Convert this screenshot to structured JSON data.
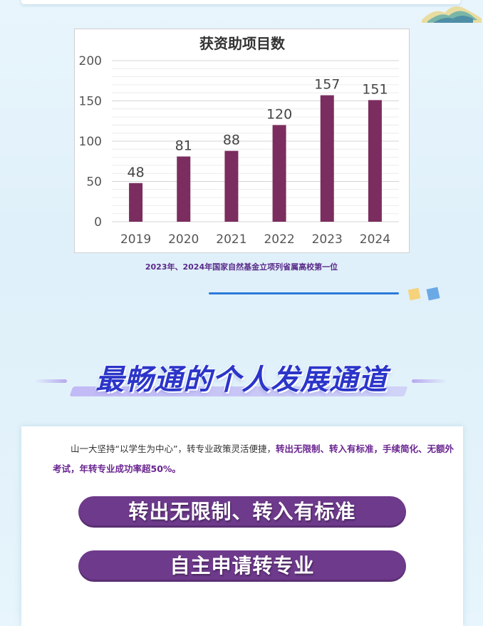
{
  "chart_data": {
    "type": "bar",
    "title": "获资助项目数",
    "categories": [
      "2019",
      "2020",
      "2021",
      "2022",
      "2023",
      "2024"
    ],
    "values": [
      48,
      81,
      88,
      120,
      157,
      151
    ],
    "ylim": [
      0,
      200
    ],
    "yticks": [
      0,
      50,
      100,
      150,
      200
    ],
    "grid": true,
    "bar_color": "#7b2d5f",
    "data_labels": true
  },
  "caption": "2023年、2024年国家自然基金立项列省属高校第一位",
  "section": {
    "title": "最畅通的个人发展通道",
    "title_color": "#2b35c9"
  },
  "intro": {
    "text_plain": "山一大坚持“以学生为中心”，转专业政策灵活便捷，",
    "text_highlight": "转出无限制、转入有标准，手续简化、无额外考试，年转专业成功率超50%。"
  },
  "pills": [
    {
      "label": "转出无限制、转入有标准"
    },
    {
      "label": "自主申请转专业"
    }
  ],
  "colors": {
    "accent_purple": "#6e3a8c",
    "highlight_text": "#6a2590",
    "blue_line": "#2a7ad8"
  }
}
